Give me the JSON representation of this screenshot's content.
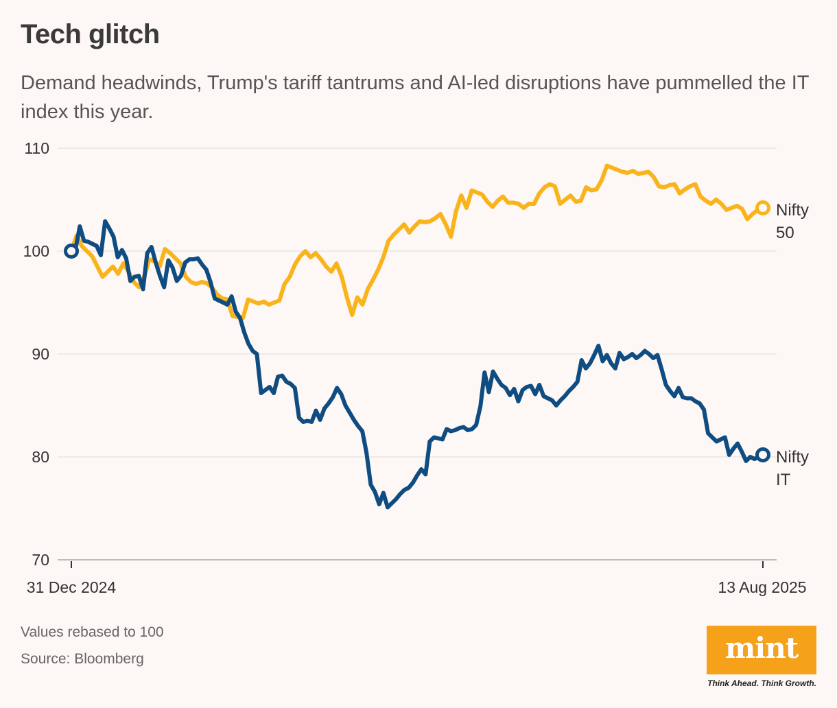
{
  "header": {
    "title": "Tech glitch",
    "subtitle": "Demand headwinds, Trump's tariff tantrums and AI-led disruptions have pummelled the IT index this year."
  },
  "footer": {
    "note": "Values rebased to 100",
    "source": "Source: Bloomberg"
  },
  "brand": {
    "logo_text": "mint",
    "tagline": "Think Ahead. Think Growth.",
    "logo_color": "#f6a11a"
  },
  "chart_data": {
    "type": "line",
    "title": "Tech glitch",
    "xlabel": "",
    "ylabel": "",
    "ylim": [
      70,
      110
    ],
    "yticks": [
      70,
      80,
      90,
      100,
      110
    ],
    "x_tick_labels": [
      "31 Dec 2024",
      "13 Aug 2025"
    ],
    "x_note": "trading days from 31 Dec 2024 to 13 Aug 2025",
    "grid": true,
    "series": [
      {
        "name": "Nifty 50",
        "label_lines": [
          "Nifty",
          "50"
        ],
        "color": "#f9b31b",
        "values": [
          100,
          101.5,
          100.5,
          100,
          99.5,
          98.5,
          97.5,
          98,
          98.5,
          97.8,
          98.8,
          98,
          97,
          96.5,
          97.5,
          99.2,
          99,
          98.5,
          100.2,
          99.8,
          99.3,
          98.8,
          97.5,
          97,
          96.8,
          97,
          96.9,
          96.5,
          95.8,
          95.4,
          95.3,
          93.7,
          93.6,
          93.5,
          95.3,
          95.1,
          94.9,
          95.1,
          94.8,
          95,
          95.2,
          96.8,
          97.5,
          98.7,
          99.5,
          100,
          99.4,
          99.8,
          99.2,
          98.5,
          98,
          98.8,
          97.5,
          95.5,
          93.8,
          95.5,
          94.8,
          96.3,
          97.2,
          98.2,
          99.4,
          101,
          101.6,
          102.1,
          102.6,
          101.8,
          102.4,
          102.9,
          102.8,
          102.9,
          103.2,
          103.6,
          102.6,
          101.4,
          103.9,
          105.4,
          104.2,
          105.9,
          105.7,
          105.5,
          104.8,
          104.3,
          104.9,
          105.3,
          104.7,
          104.7,
          104.6,
          104.2,
          104.6,
          104.6,
          105.6,
          106.2,
          106.5,
          106.3,
          104.6,
          105,
          105.4,
          104.8,
          104.9,
          106.2,
          105.9,
          106,
          106.9,
          108.3,
          108.1,
          107.9,
          107.7,
          107.6,
          107.8,
          107.5,
          107.6,
          107.7,
          107.2,
          106.3,
          106.2,
          106.4,
          106.5,
          105.6,
          106,
          106.3,
          106.5,
          105.3,
          104.9,
          104.6,
          105,
          104.6,
          104,
          104.2,
          104.4,
          104.1,
          103.1,
          103.6,
          104,
          104.2
        ]
      },
      {
        "name": "Nifty IT",
        "label_lines": [
          "Nifty",
          "IT"
        ],
        "color": "#0f4c81",
        "values": [
          100,
          100.2,
          102.4,
          101,
          100.9,
          100.7,
          100.5,
          99.6,
          102.9,
          102.2,
          101.4,
          99.4,
          100.1,
          99.3,
          97.1,
          97.5,
          97.6,
          96.3,
          99.8,
          100.4,
          98.9,
          97.6,
          96.5,
          99.1,
          98.4,
          97.1,
          97.6,
          98.9,
          99.2,
          99.2,
          99.3,
          98.7,
          98.2,
          97,
          95.4,
          95.2,
          95,
          94.8,
          95.6,
          94.1,
          93.5,
          92.1,
          91,
          90.3,
          90,
          86.2,
          86.5,
          86.8,
          86.2,
          87.8,
          87.9,
          87.3,
          87.1,
          86.7,
          83.8,
          83.4,
          83.5,
          83.4,
          84.5,
          83.6,
          84.7,
          85.2,
          85.8,
          86.7,
          86.1,
          85,
          84.3,
          83.6,
          83,
          82.5,
          80.4,
          77.3,
          76.6,
          75.4,
          76.5,
          75.1,
          75.5,
          75.9,
          76.4,
          76.8,
          77,
          77.5,
          78.2,
          78.8,
          78.3,
          81.5,
          81.9,
          81.8,
          81.7,
          82.7,
          82.5,
          82.6,
          82.8,
          82.9,
          82.6,
          82.7,
          83.1,
          84.9,
          88.2,
          86.3,
          88.3,
          87.6,
          87,
          86.7,
          86,
          86.6,
          85.4,
          86.5,
          86.8,
          86.9,
          86.1,
          87,
          85.9,
          85.7,
          85.5,
          85,
          85.5,
          85.9,
          86.4,
          86.8,
          87.3,
          89.4,
          88.6,
          89.1,
          89.9,
          90.8,
          89.3,
          89.9,
          89.1,
          88.6,
          90.1,
          89.5,
          89.7,
          90,
          89.6,
          89.9,
          90.3,
          90,
          89.6,
          89.9,
          88.5,
          87,
          86.4,
          85.9,
          86.7,
          85.8,
          85.7,
          85.7,
          85.4,
          85.2,
          84.6,
          82.3,
          81.9,
          81.5,
          81.7,
          81.9,
          80.2,
          80.8,
          81.3,
          80.5,
          79.6,
          80,
          79.8,
          80,
          80.2
        ]
      }
    ]
  }
}
